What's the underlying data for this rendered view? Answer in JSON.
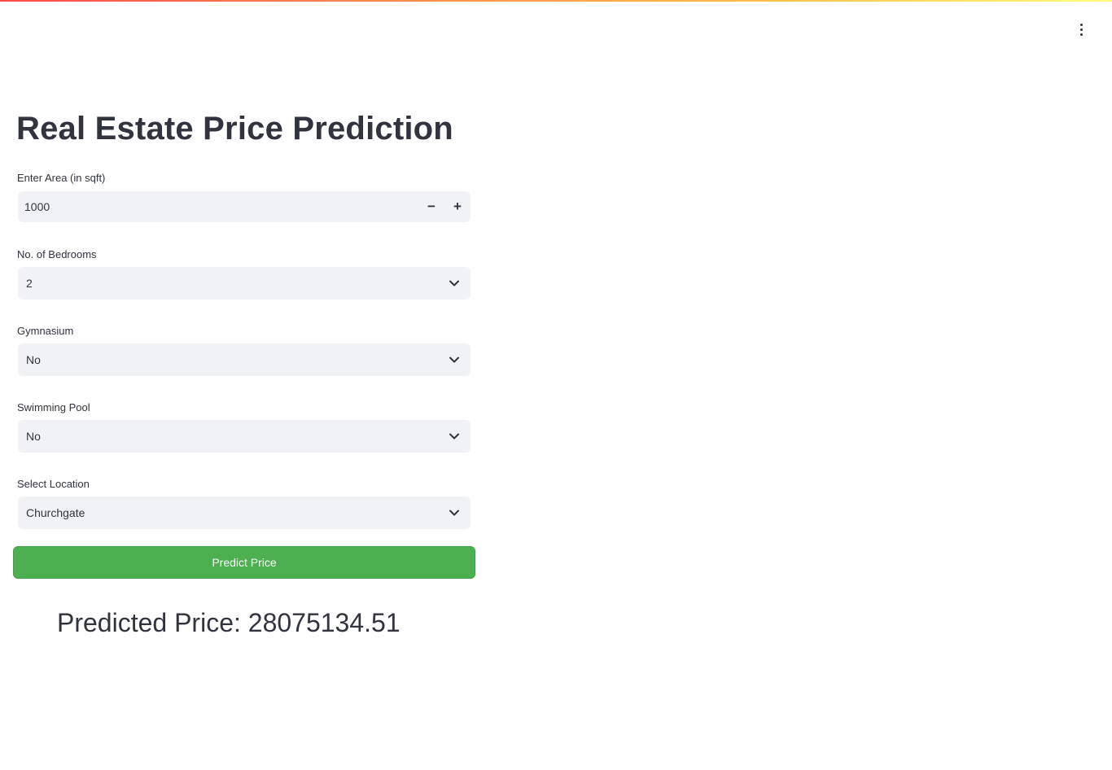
{
  "app": {
    "title": "Real Estate Price Prediction",
    "menu_icon": "kebab-menu-icon"
  },
  "form": {
    "area": {
      "label": "Enter Area (in sqft)",
      "value": "1000",
      "decrement": "−",
      "increment": "+"
    },
    "bedrooms": {
      "label": "No. of Bedrooms",
      "value": "2"
    },
    "gymnasium": {
      "label": "Gymnasium",
      "value": "No"
    },
    "swimming_pool": {
      "label": "Swimming Pool",
      "value": "No"
    },
    "location": {
      "label": "Select Location",
      "value": "Churchgate"
    },
    "submit_label": "Predict Price"
  },
  "result": {
    "text": "Predicted Price: 28075134.51"
  },
  "colors": {
    "accent_button": "#4caf50",
    "input_bg": "#f0f2f6",
    "text": "#31333f"
  }
}
